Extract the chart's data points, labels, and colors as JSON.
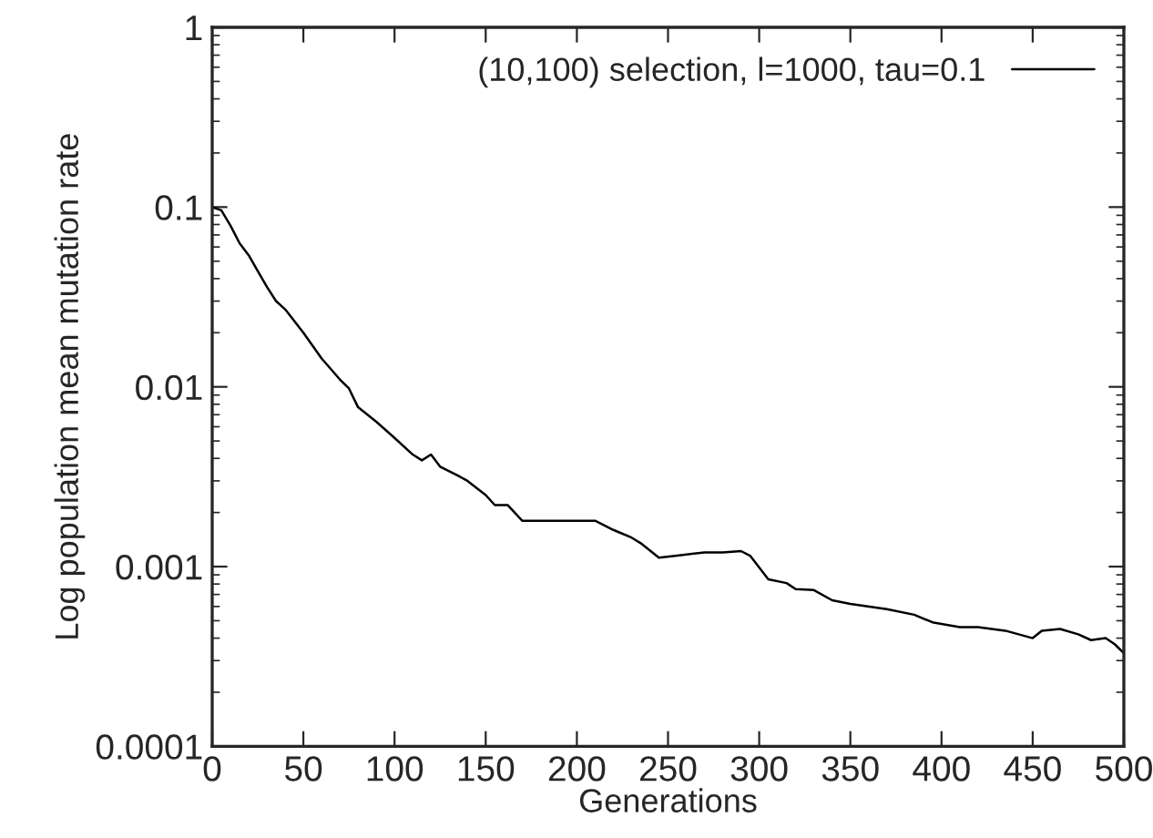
{
  "chart_data": {
    "type": "line",
    "xlabel": "Generations",
    "ylabel": "Log population mean mutation rate",
    "log": "y",
    "xlim": [
      0,
      500
    ],
    "xticks": [
      0,
      50,
      100,
      150,
      200,
      250,
      300,
      350,
      400,
      450,
      500
    ],
    "ylim": [
      0.0001,
      1
    ],
    "yticks": [
      0.0001,
      0.001,
      0.01,
      0.1,
      1
    ],
    "grid": false,
    "legend": "top right",
    "series": [
      {
        "name": "(10,100) selection, l=1000, tau=0.1",
        "color": "#000000",
        "x": [
          0,
          5,
          10,
          15,
          20,
          25,
          30,
          35,
          40,
          50,
          60,
          70,
          75,
          80,
          90,
          100,
          110,
          115,
          120,
          125,
          135,
          140,
          150,
          155,
          162,
          170,
          180,
          190,
          200,
          210,
          220,
          230,
          235,
          240,
          245,
          255,
          270,
          280,
          290,
          295,
          300,
          305,
          315,
          320,
          330,
          340,
          350,
          370,
          385,
          395,
          410,
          420,
          435,
          450,
          455,
          465,
          475,
          482,
          490,
          495,
          500
        ],
        "values": [
          0.1,
          0.096,
          0.079,
          0.063,
          0.054,
          0.044,
          0.036,
          0.03,
          0.027,
          0.02,
          0.0144,
          0.011,
          0.0098,
          0.0077,
          0.0064,
          0.0052,
          0.0042,
          0.0039,
          0.0042,
          0.0036,
          0.0032,
          0.003,
          0.0025,
          0.0022,
          0.0022,
          0.0018,
          0.0018,
          0.0018,
          0.0018,
          0.0018,
          0.0016,
          0.00145,
          0.00135,
          0.00123,
          0.00112,
          0.00115,
          0.0012,
          0.0012,
          0.00122,
          0.00115,
          0.00099,
          0.00085,
          0.00081,
          0.00075,
          0.00074,
          0.00065,
          0.00062,
          0.00058,
          0.00054,
          0.00049,
          0.00046,
          0.00046,
          0.00044,
          0.0004,
          0.00044,
          0.00045,
          0.00042,
          0.00039,
          0.0004,
          0.00037,
          0.00033
        ]
      }
    ]
  }
}
